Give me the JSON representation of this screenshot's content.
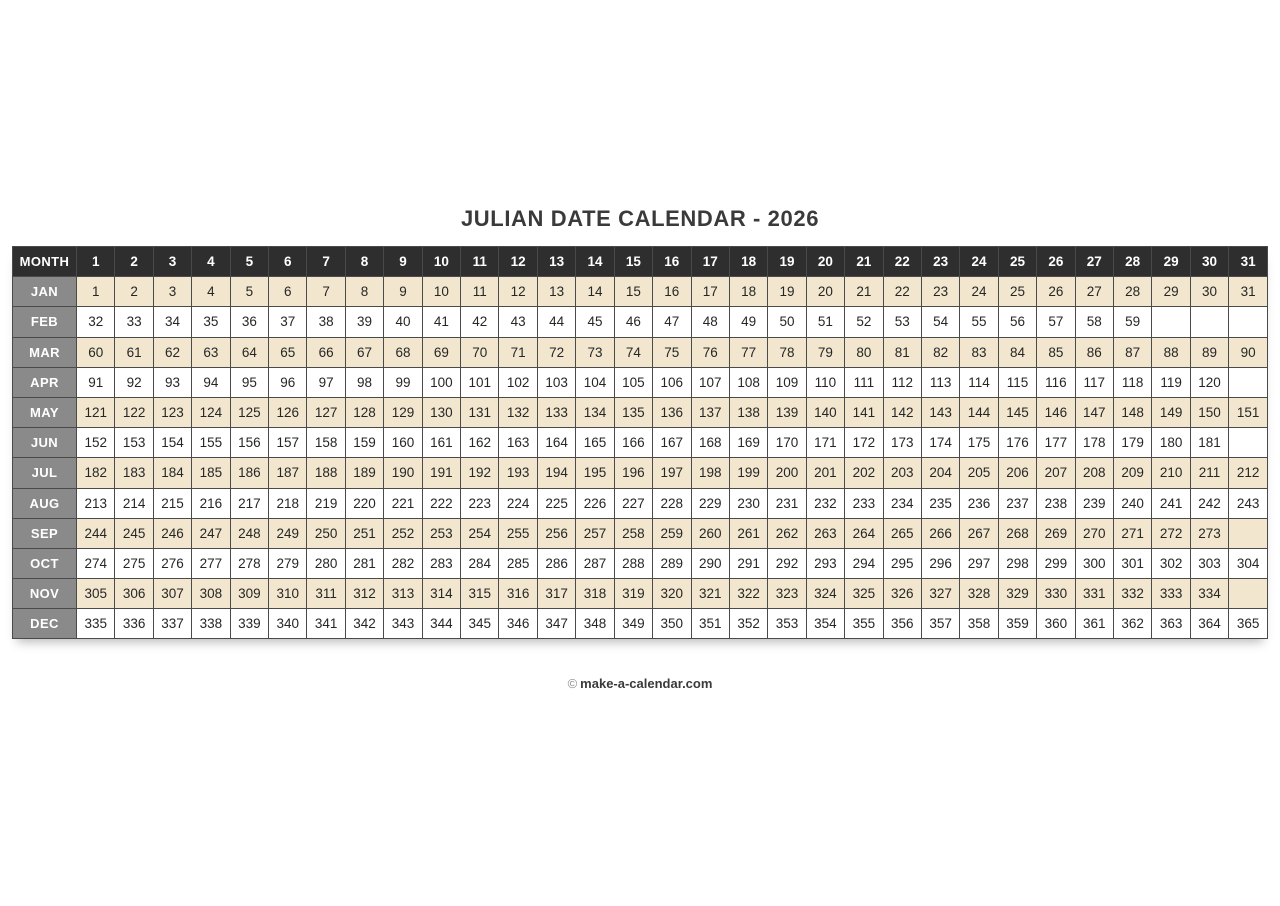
{
  "title": "JULIAN DATE CALENDAR - 2026",
  "footer": {
    "symbol": "©",
    "text": "make-a-calendar.com"
  },
  "colors": {
    "header_bg": "#2e2e2e",
    "month_label_bg": "#8a8a8a",
    "row_beige": "#f2e7ce",
    "row_white": "#ffffff",
    "border": "#4a4a4a",
    "title_text": "#3a3a3a"
  },
  "header": {
    "month_label": "MONTH",
    "days": [
      "1",
      "2",
      "3",
      "4",
      "5",
      "6",
      "7",
      "8",
      "9",
      "10",
      "11",
      "12",
      "13",
      "14",
      "15",
      "16",
      "17",
      "18",
      "19",
      "20",
      "21",
      "22",
      "23",
      "24",
      "25",
      "26",
      "27",
      "28",
      "29",
      "30",
      "31"
    ]
  },
  "months": [
    {
      "name": "JAN",
      "values": [
        "1",
        "2",
        "3",
        "4",
        "5",
        "6",
        "7",
        "8",
        "9",
        "10",
        "11",
        "12",
        "13",
        "14",
        "15",
        "16",
        "17",
        "18",
        "19",
        "20",
        "21",
        "22",
        "23",
        "24",
        "25",
        "26",
        "27",
        "28",
        "29",
        "30",
        "31"
      ]
    },
    {
      "name": "FEB",
      "values": [
        "32",
        "33",
        "34",
        "35",
        "36",
        "37",
        "38",
        "39",
        "40",
        "41",
        "42",
        "43",
        "44",
        "45",
        "46",
        "47",
        "48",
        "49",
        "50",
        "51",
        "52",
        "53",
        "54",
        "55",
        "56",
        "57",
        "58",
        "59",
        "",
        "",
        ""
      ]
    },
    {
      "name": "MAR",
      "values": [
        "60",
        "61",
        "62",
        "63",
        "64",
        "65",
        "66",
        "67",
        "68",
        "69",
        "70",
        "71",
        "72",
        "73",
        "74",
        "75",
        "76",
        "77",
        "78",
        "79",
        "80",
        "81",
        "82",
        "83",
        "84",
        "85",
        "86",
        "87",
        "88",
        "89",
        "90"
      ]
    },
    {
      "name": "APR",
      "values": [
        "91",
        "92",
        "93",
        "94",
        "95",
        "96",
        "97",
        "98",
        "99",
        "100",
        "101",
        "102",
        "103",
        "104",
        "105",
        "106",
        "107",
        "108",
        "109",
        "110",
        "111",
        "112",
        "113",
        "114",
        "115",
        "116",
        "117",
        "118",
        "119",
        "120",
        ""
      ]
    },
    {
      "name": "MAY",
      "values": [
        "121",
        "122",
        "123",
        "124",
        "125",
        "126",
        "127",
        "128",
        "129",
        "130",
        "131",
        "132",
        "133",
        "134",
        "135",
        "136",
        "137",
        "138",
        "139",
        "140",
        "141",
        "142",
        "143",
        "144",
        "145",
        "146",
        "147",
        "148",
        "149",
        "150",
        "151"
      ]
    },
    {
      "name": "JUN",
      "values": [
        "152",
        "153",
        "154",
        "155",
        "156",
        "157",
        "158",
        "159",
        "160",
        "161",
        "162",
        "163",
        "164",
        "165",
        "166",
        "167",
        "168",
        "169",
        "170",
        "171",
        "172",
        "173",
        "174",
        "175",
        "176",
        "177",
        "178",
        "179",
        "180",
        "181",
        ""
      ]
    },
    {
      "name": "JUL",
      "values": [
        "182",
        "183",
        "184",
        "185",
        "186",
        "187",
        "188",
        "189",
        "190",
        "191",
        "192",
        "193",
        "194",
        "195",
        "196",
        "197",
        "198",
        "199",
        "200",
        "201",
        "202",
        "203",
        "204",
        "205",
        "206",
        "207",
        "208",
        "209",
        "210",
        "211",
        "212"
      ]
    },
    {
      "name": "AUG",
      "values": [
        "213",
        "214",
        "215",
        "216",
        "217",
        "218",
        "219",
        "220",
        "221",
        "222",
        "223",
        "224",
        "225",
        "226",
        "227",
        "228",
        "229",
        "230",
        "231",
        "232",
        "233",
        "234",
        "235",
        "236",
        "237",
        "238",
        "239",
        "240",
        "241",
        "242",
        "243"
      ]
    },
    {
      "name": "SEP",
      "values": [
        "244",
        "245",
        "246",
        "247",
        "248",
        "249",
        "250",
        "251",
        "252",
        "253",
        "254",
        "255",
        "256",
        "257",
        "258",
        "259",
        "260",
        "261",
        "262",
        "263",
        "264",
        "265",
        "266",
        "267",
        "268",
        "269",
        "270",
        "271",
        "272",
        "273",
        ""
      ]
    },
    {
      "name": "OCT",
      "values": [
        "274",
        "275",
        "276",
        "277",
        "278",
        "279",
        "280",
        "281",
        "282",
        "283",
        "284",
        "285",
        "286",
        "287",
        "288",
        "289",
        "290",
        "291",
        "292",
        "293",
        "294",
        "295",
        "296",
        "297",
        "298",
        "299",
        "300",
        "301",
        "302",
        "303",
        "304"
      ]
    },
    {
      "name": "NOV",
      "values": [
        "305",
        "306",
        "307",
        "308",
        "309",
        "310",
        "311",
        "312",
        "313",
        "314",
        "315",
        "316",
        "317",
        "318",
        "319",
        "320",
        "321",
        "322",
        "323",
        "324",
        "325",
        "326",
        "327",
        "328",
        "329",
        "330",
        "331",
        "332",
        "333",
        "334",
        ""
      ]
    },
    {
      "name": "DEC",
      "values": [
        "335",
        "336",
        "337",
        "338",
        "339",
        "340",
        "341",
        "342",
        "343",
        "344",
        "345",
        "346",
        "347",
        "348",
        "349",
        "350",
        "351",
        "352",
        "353",
        "354",
        "355",
        "356",
        "357",
        "358",
        "359",
        "360",
        "361",
        "362",
        "363",
        "364",
        "365"
      ]
    }
  ]
}
